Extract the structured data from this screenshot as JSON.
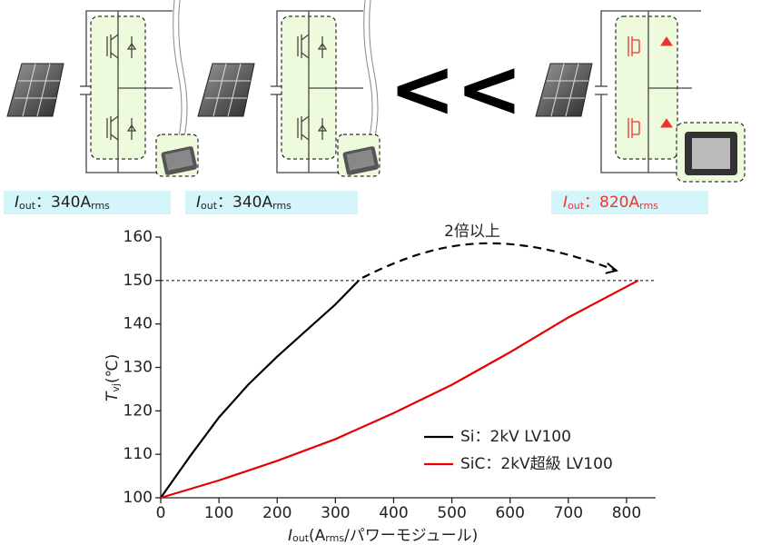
{
  "panels": [
    {
      "label": [
        "I",
        "out",
        "：340A",
        "rms"
      ]
    },
    {
      "label": [
        "I",
        "out",
        "：340A",
        "rms"
      ]
    },
    {
      "label": [
        "I",
        "out",
        "：820A",
        "rms"
      ]
    }
  ],
  "comparison": "<<",
  "chart_data": {
    "type": "line",
    "annotation": "2倍以上",
    "x_label": [
      "I",
      "out",
      "(A",
      "rms",
      "/パワーモジュール)"
    ],
    "y_label": [
      "T",
      "vj",
      "(℃)"
    ],
    "xlim": [
      0,
      850
    ],
    "xticks": [
      0,
      100,
      200,
      300,
      400,
      500,
      600,
      700,
      800
    ],
    "ylim": [
      100,
      160
    ],
    "yticks": [
      100,
      110,
      120,
      130,
      140,
      150,
      160
    ],
    "reference_line": 150,
    "legend": "lower right",
    "series": [
      {
        "name": "Si：2kV LV100",
        "color": "#000000",
        "x": [
          0,
          50,
          100,
          150,
          200,
          250,
          300,
          340
        ],
        "values": [
          100,
          109.5,
          118.5,
          126,
          132.5,
          138.5,
          144.5,
          150
        ]
      },
      {
        "name": "SiC：2kV超級 LV100",
        "color": "#e60000",
        "x": [
          0,
          100,
          200,
          300,
          400,
          500,
          600,
          700,
          820
        ],
        "values": [
          100,
          104,
          108.5,
          113.5,
          119.5,
          126,
          133.5,
          141.5,
          150
        ]
      }
    ]
  }
}
